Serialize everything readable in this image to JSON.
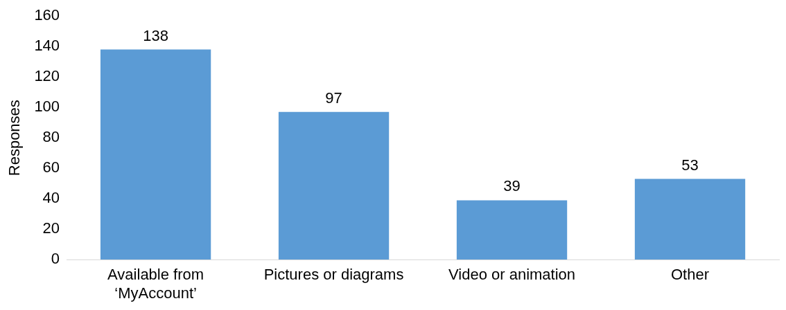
{
  "chart_data": {
    "type": "bar",
    "ylabel": "Responses",
    "categories": [
      "Available from ‘MyAccount’",
      "Pictures or diagrams",
      "Video or animation",
      "Other"
    ],
    "values": [
      138,
      97,
      39,
      53
    ],
    "color": "#5b9bd5",
    "ylim": [
      0,
      160
    ],
    "yticks": [
      0,
      20,
      40,
      60,
      80,
      100,
      120,
      140,
      160
    ],
    "grid": false,
    "data_labels": true
  }
}
